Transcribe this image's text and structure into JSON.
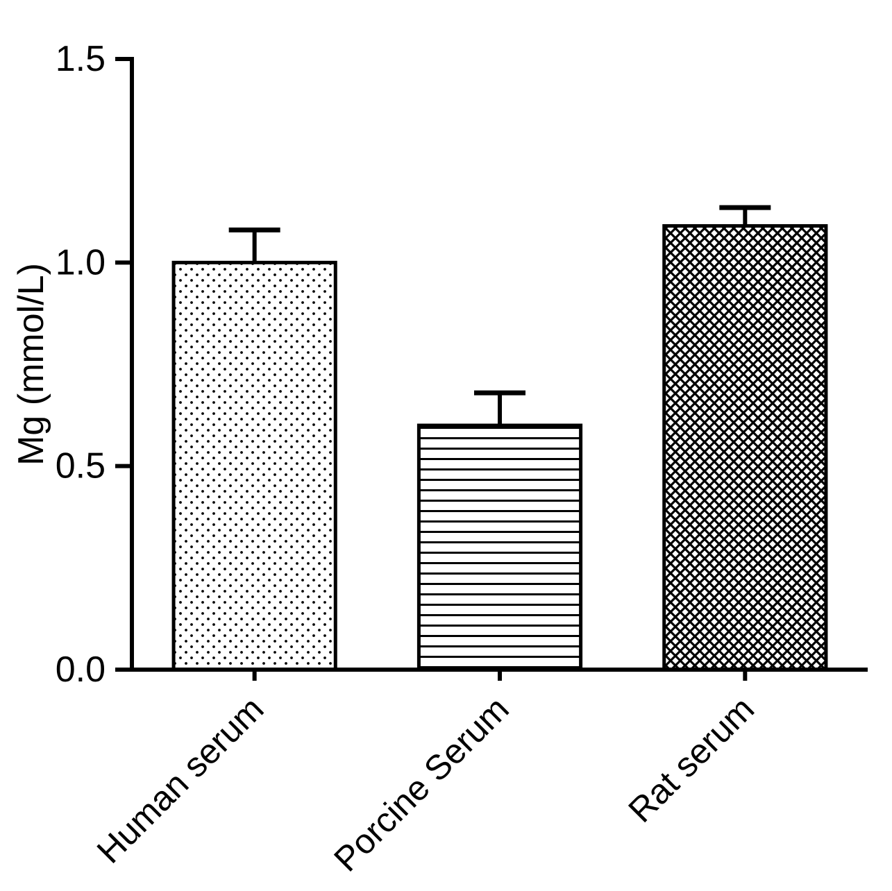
{
  "chart_data": {
    "type": "bar",
    "categories": [
      "Human serum",
      "Porcine Serum",
      "Rat serum"
    ],
    "values": [
      1.0,
      0.6,
      1.09
    ],
    "errors_plus": [
      0.08,
      0.08,
      0.045
    ],
    "title": "",
    "xlabel": "",
    "ylabel": "Mg (mmol/L)",
    "ylim": [
      0,
      1.5
    ],
    "yticks": [
      0.0,
      0.5,
      1.0,
      1.5
    ],
    "ytick_labels": [
      "0.0",
      "0.5",
      "1.0",
      "1.5"
    ],
    "bar_patterns": [
      "dots",
      "horizontal-lines",
      "diagonal-crosshatch"
    ],
    "bar_fill_background": "#ffffff",
    "bar_stroke_color": "#000000",
    "axis_color": "#000000",
    "background": "#ffffff",
    "grid": false,
    "legend_position": "none"
  }
}
